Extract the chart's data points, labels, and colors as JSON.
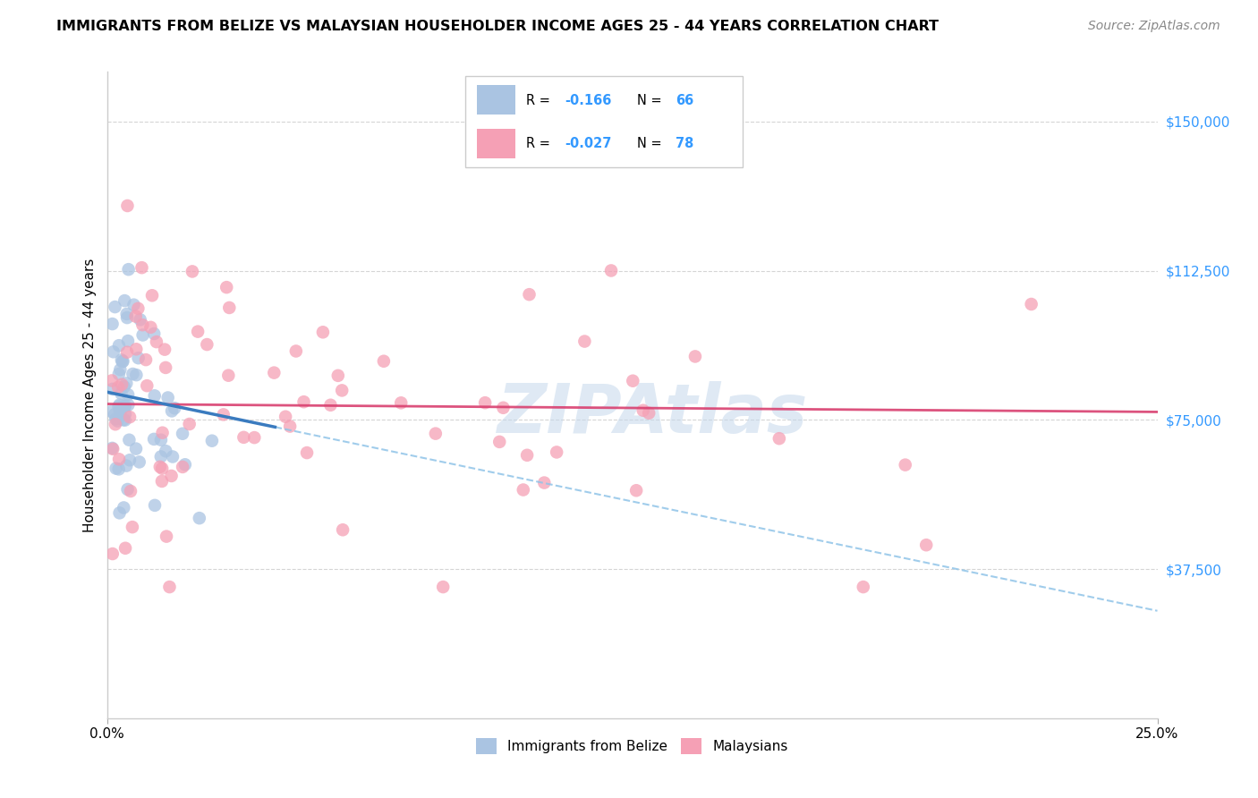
{
  "title": "IMMIGRANTS FROM BELIZE VS MALAYSIAN HOUSEHOLDER INCOME AGES 25 - 44 YEARS CORRELATION CHART",
  "source": "Source: ZipAtlas.com",
  "ylabel": "Householder Income Ages 25 - 44 years",
  "ytick_values": [
    37500,
    75000,
    112500,
    150000
  ],
  "ymin": 0,
  "ymax": 162500,
  "xmin": 0.0,
  "xmax": 0.25,
  "legend1_label": "Immigrants from Belize",
  "legend2_label": "Malaysians",
  "r1": "-0.166",
  "n1": "66",
  "r2": "-0.027",
  "n2": "78",
  "color_belize": "#aac4e2",
  "color_malaysia": "#f5a0b5",
  "color_belize_solid": "#3a7bbf",
  "color_malaysia_line": "#d94070",
  "color_belize_dashed": "#90c4e8",
  "watermark_color": "#c5d8ec",
  "grid_color": "#d5d5d5",
  "border_color": "#cccccc",
  "ytick_color": "#3399ff",
  "title_fontsize": 11.5,
  "source_fontsize": 10,
  "ylabel_fontsize": 11,
  "tick_fontsize": 11,
  "legend_fontsize": 11
}
